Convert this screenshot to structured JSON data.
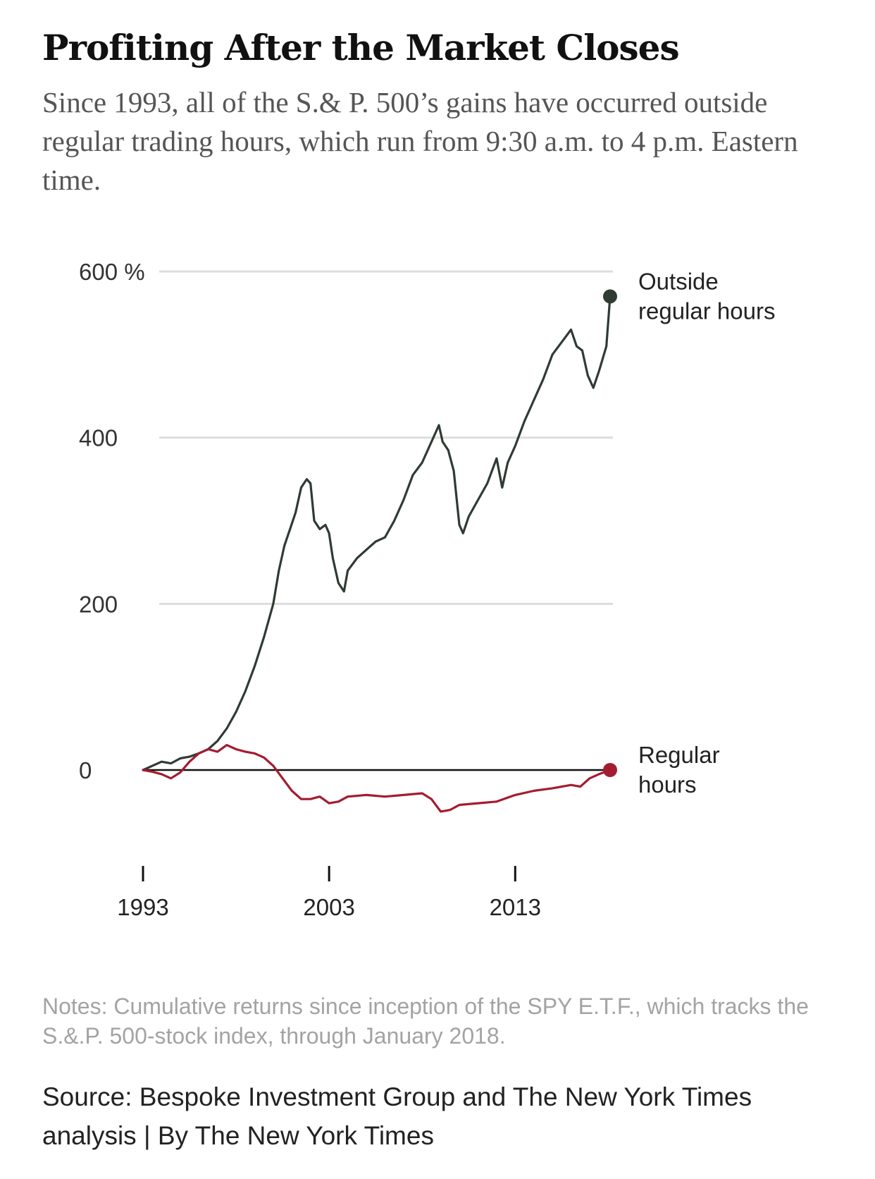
{
  "header": {
    "title": "Profiting After the Market Closes",
    "subtitle": "Since 1993, all of the S.& P. 500’s gains have occurred outside regular trading hours, which run from 9:30 a.m. to 4 p.m. Eastern time."
  },
  "chart_data": {
    "type": "line",
    "title": "Profiting After the Market Closes",
    "xlabel": "",
    "ylabel": "",
    "xlim": [
      1993,
      2018.1
    ],
    "ylim": [
      -80,
      600
    ],
    "y_ticks": [
      {
        "value": 0,
        "label": "0"
      },
      {
        "value": 200,
        "label": "200"
      },
      {
        "value": 400,
        "label": "400"
      },
      {
        "value": 600,
        "label": "600 %"
      }
    ],
    "x_ticks": [
      {
        "value": 1993,
        "label": "1993"
      },
      {
        "value": 2003,
        "label": "2003"
      },
      {
        "value": 2013,
        "label": "2013"
      }
    ],
    "grid": true,
    "legend": "direct labels at right end of each series",
    "series": [
      {
        "name": "Outside regular hours",
        "label_lines": [
          "Outside",
          "regular hours"
        ],
        "color": "#2f3b33",
        "points": [
          [
            1993.0,
            0
          ],
          [
            1993.5,
            5
          ],
          [
            1994.0,
            10
          ],
          [
            1994.5,
            8
          ],
          [
            1995.0,
            14
          ],
          [
            1995.5,
            16
          ],
          [
            1996.0,
            20
          ],
          [
            1996.5,
            25
          ],
          [
            1997.0,
            35
          ],
          [
            1997.5,
            50
          ],
          [
            1998.0,
            70
          ],
          [
            1998.5,
            95
          ],
          [
            1999.0,
            125
          ],
          [
            1999.5,
            160
          ],
          [
            2000.0,
            200
          ],
          [
            2000.3,
            240
          ],
          [
            2000.6,
            270
          ],
          [
            2000.9,
            290
          ],
          [
            2001.2,
            310
          ],
          [
            2001.5,
            340
          ],
          [
            2001.8,
            350
          ],
          [
            2002.0,
            345
          ],
          [
            2002.2,
            300
          ],
          [
            2002.5,
            290
          ],
          [
            2002.8,
            295
          ],
          [
            2003.0,
            285
          ],
          [
            2003.2,
            255
          ],
          [
            2003.5,
            225
          ],
          [
            2003.8,
            215
          ],
          [
            2004.0,
            240
          ],
          [
            2004.5,
            255
          ],
          [
            2005.0,
            265
          ],
          [
            2005.5,
            275
          ],
          [
            2006.0,
            280
          ],
          [
            2006.5,
            300
          ],
          [
            2007.0,
            325
          ],
          [
            2007.5,
            355
          ],
          [
            2008.0,
            370
          ],
          [
            2008.5,
            395
          ],
          [
            2008.9,
            415
          ],
          [
            2009.1,
            395
          ],
          [
            2009.4,
            385
          ],
          [
            2009.7,
            360
          ],
          [
            2010.0,
            295
          ],
          [
            2010.2,
            285
          ],
          [
            2010.5,
            305
          ],
          [
            2011.0,
            325
          ],
          [
            2011.5,
            345
          ],
          [
            2012.0,
            375
          ],
          [
            2012.3,
            340
          ],
          [
            2012.6,
            370
          ],
          [
            2013.0,
            390
          ],
          [
            2013.5,
            420
          ],
          [
            2014.0,
            445
          ],
          [
            2014.5,
            470
          ],
          [
            2015.0,
            500
          ],
          [
            2015.5,
            515
          ],
          [
            2016.0,
            530
          ],
          [
            2016.3,
            510
          ],
          [
            2016.6,
            505
          ],
          [
            2016.9,
            475
          ],
          [
            2017.2,
            460
          ],
          [
            2017.5,
            480
          ],
          [
            2017.9,
            510
          ],
          [
            2018.1,
            570
          ]
        ]
      },
      {
        "name": "Regular hours",
        "label_lines": [
          "Regular",
          "hours"
        ],
        "color": "#a41c30",
        "points": [
          [
            1993.0,
            0
          ],
          [
            1993.5,
            -2
          ],
          [
            1994.0,
            -5
          ],
          [
            1994.5,
            -10
          ],
          [
            1995.0,
            -3
          ],
          [
            1995.5,
            10
          ],
          [
            1996.0,
            20
          ],
          [
            1996.5,
            25
          ],
          [
            1997.0,
            22
          ],
          [
            1997.5,
            30
          ],
          [
            1998.0,
            25
          ],
          [
            1998.5,
            22
          ],
          [
            1999.0,
            20
          ],
          [
            1999.5,
            15
          ],
          [
            2000.0,
            5
          ],
          [
            2000.5,
            -10
          ],
          [
            2001.0,
            -25
          ],
          [
            2001.5,
            -35
          ],
          [
            2002.0,
            -35
          ],
          [
            2002.5,
            -32
          ],
          [
            2003.0,
            -40
          ],
          [
            2003.5,
            -38
          ],
          [
            2004.0,
            -32
          ],
          [
            2005.0,
            -30
          ],
          [
            2006.0,
            -32
          ],
          [
            2007.0,
            -30
          ],
          [
            2008.0,
            -28
          ],
          [
            2008.5,
            -35
          ],
          [
            2009.0,
            -50
          ],
          [
            2009.5,
            -48
          ],
          [
            2010.0,
            -42
          ],
          [
            2011.0,
            -40
          ],
          [
            2012.0,
            -38
          ],
          [
            2013.0,
            -30
          ],
          [
            2014.0,
            -25
          ],
          [
            2015.0,
            -22
          ],
          [
            2016.0,
            -18
          ],
          [
            2016.5,
            -20
          ],
          [
            2017.0,
            -10
          ],
          [
            2017.5,
            -5
          ],
          [
            2018.1,
            0
          ]
        ]
      }
    ]
  },
  "footer": {
    "notes": "Notes: Cumulative returns since inception of the SPY E.T.F., which tracks the S.&.P. 500-stock index, through January 2018.",
    "source": "Source: Bespoke Investment Group and The New York Times analysis | By The New York Times"
  }
}
